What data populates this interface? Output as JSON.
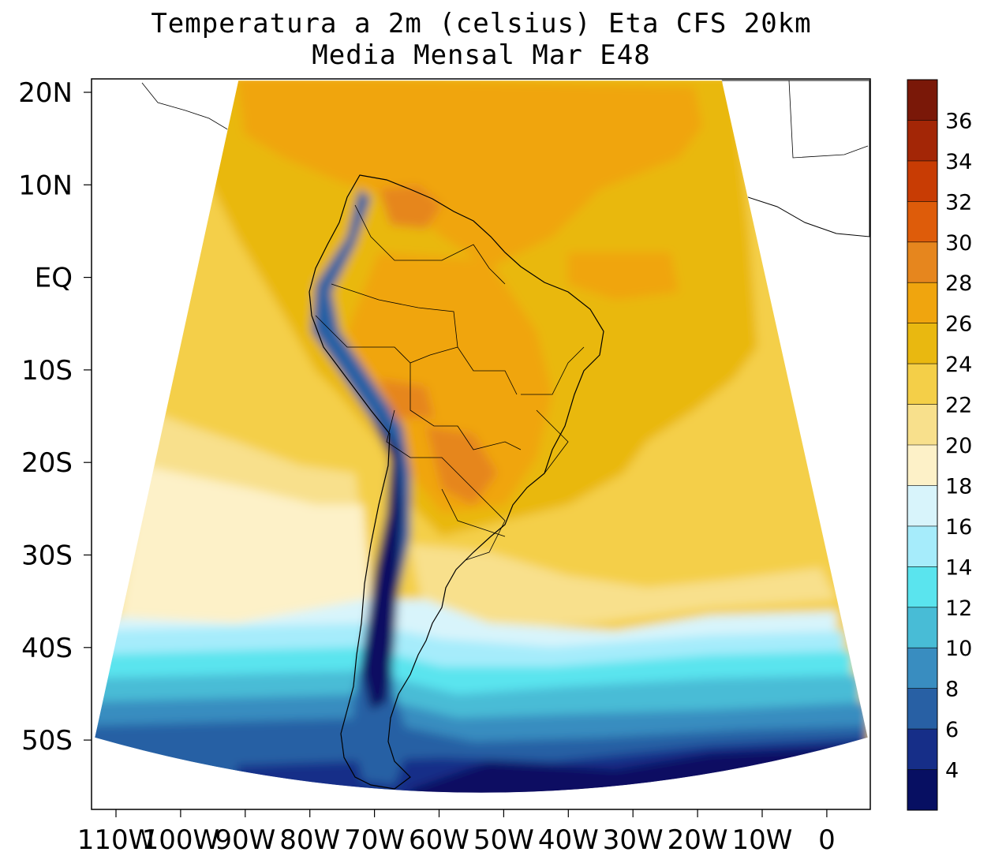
{
  "title": {
    "line1": "Temperatura a 2m (celsius) Eta CFS 20km",
    "line2": "Media Mensal Mar  E48"
  },
  "axes": {
    "y_ticks": [
      "20N",
      "10N",
      "EQ",
      "10S",
      "20S",
      "30S",
      "40S",
      "50S"
    ],
    "x_ticks": [
      "110W",
      "100W",
      "90W",
      "80W",
      "70W",
      "60W",
      "50W",
      "40W",
      "30W",
      "20W",
      "10W",
      "0"
    ],
    "lat_range": [
      -58,
      21
    ],
    "lon_range": [
      -114,
      6
    ]
  },
  "colorbar": {
    "labels": [
      "36",
      "34",
      "32",
      "30",
      "28",
      "26",
      "24",
      "22",
      "20",
      "18",
      "16",
      "14",
      "12",
      "10",
      "8",
      "6",
      "4"
    ],
    "colors_top_to_bottom": [
      "#7a1808",
      "#a32606",
      "#c83c04",
      "#de5c0a",
      "#e6861e",
      "#f0a50e",
      "#e9b810",
      "#f4cf48",
      "#f8e08c",
      "#fdf1c8",
      "#d8f4fb",
      "#a6ecfb",
      "#5ae4ee",
      "#48bcd6",
      "#398dc0",
      "#2860a4",
      "#162e88",
      "#070f62"
    ]
  },
  "chart_data": {
    "type": "heatmap",
    "title": "Temperatura a 2m (celsius) Eta CFS 20km",
    "subtitle": "Media Mensal Mar  E48",
    "variable": "2m temperature",
    "units": "celsius",
    "levels": [
      4,
      6,
      8,
      10,
      12,
      14,
      16,
      18,
      20,
      22,
      24,
      26,
      28,
      30,
      32,
      34,
      36
    ],
    "region": "South America, Eta model domain",
    "lat_range": [
      -58,
      21
    ],
    "lon_range": [
      -114,
      6
    ]
  }
}
